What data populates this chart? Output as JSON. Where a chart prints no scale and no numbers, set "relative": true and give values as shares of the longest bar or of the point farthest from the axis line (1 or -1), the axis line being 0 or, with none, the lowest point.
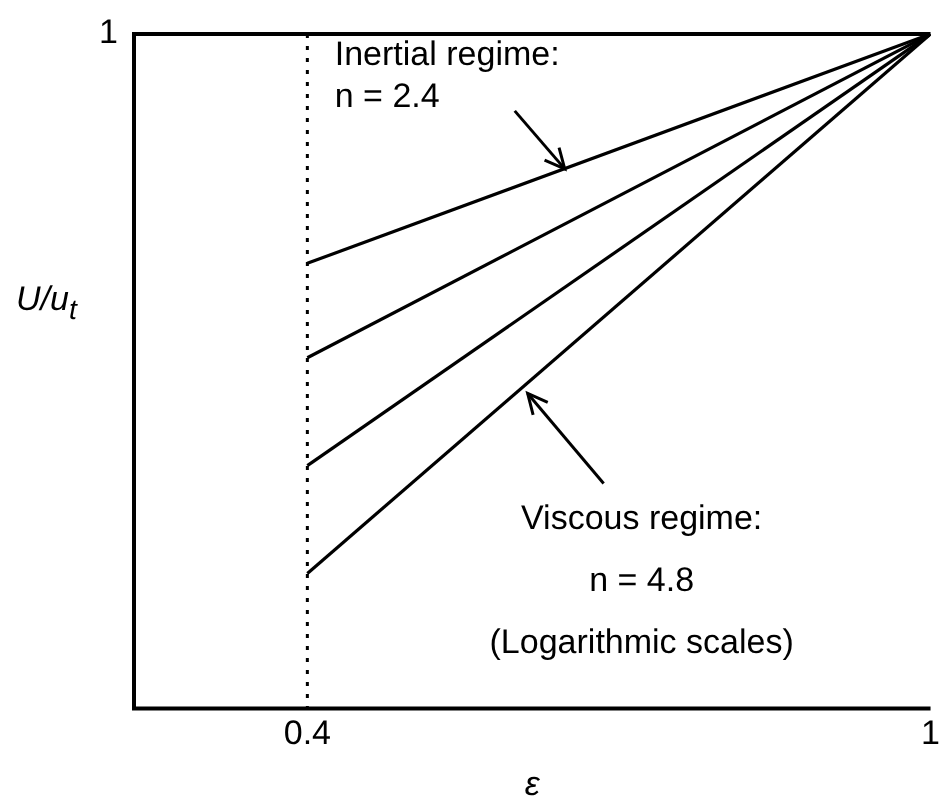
{
  "chart_data": {
    "type": "line",
    "relative": true,
    "log": "x",
    "xlabel": "ε",
    "ylabel": "U/u$_{t}$",
    "xlim": [
      0.31,
      1
    ],
    "xticks": [
      0.4,
      1
    ],
    "grid": false,
    "legend": false,
    "marker": "none",
    "line_style": "solid",
    "x": [
      0.4,
      1
    ],
    "series": [
      {
        "color": "#000000",
        "values": [
          0.66,
          1
        ]
      },
      {
        "color": "#000000",
        "values": [
          0.52,
          1
        ]
      },
      {
        "color": "#000000",
        "values": [
          0.36,
          1
        ]
      },
      {
        "color": "#000000",
        "values": [
          0.2,
          1
        ]
      }
    ],
    "ref_lines": [
      {
        "axis": "x",
        "value": 0.4,
        "color": "#000000",
        "line_style": "dotted"
      }
    ],
    "annotations": [
      "1",
      {
        "text": "Inertial regime:\nn = 2.4",
        "x": 0.584,
        "y": 0.8
      },
      {
        "text": "Viscous regime:\nn = 4.8\n(Logarithmic scales)",
        "x": 0.553,
        "y": 0.467
      }
    ]
  }
}
